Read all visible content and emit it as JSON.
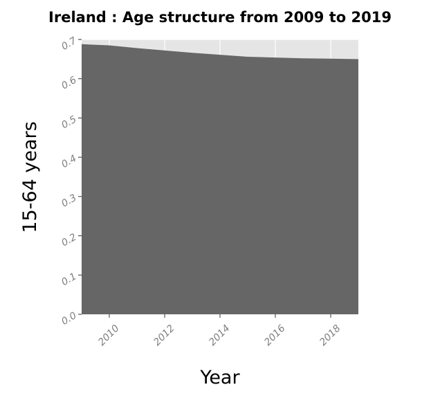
{
  "chart_data": {
    "type": "area",
    "title": "Ireland : Age structure from 2009 to 2019",
    "xlabel": "Year",
    "ylabel": "15-64 years",
    "x": [
      2009,
      2010,
      2011,
      2012,
      2013,
      2014,
      2015,
      2016,
      2017,
      2018,
      2019
    ],
    "values": [
      0.688,
      0.685,
      0.678,
      0.672,
      0.666,
      0.661,
      0.656,
      0.654,
      0.652,
      0.651,
      0.65
    ],
    "xlim": [
      2009,
      2019
    ],
    "ylim": [
      0,
      0.7
    ],
    "x_ticks": [
      2010,
      2012,
      2014,
      2016,
      2018
    ],
    "x_tick_labels": [
      "2010",
      "2012",
      "2014",
      "2016",
      "2018"
    ],
    "y_ticks": [
      0,
      0.1,
      0.2,
      0.3,
      0.4,
      0.5,
      0.6,
      0.7
    ],
    "y_tick_labels": [
      "0.0",
      "0.1",
      "0.2",
      "0.3",
      "0.4",
      "0.5",
      "0.6",
      "0.7"
    ],
    "grid": true,
    "legend": "none",
    "colors": {
      "area_fill": "#666666",
      "plot_background": "#e5e5e5",
      "grid": "#ffffff",
      "tick_label": "#7f7f7f",
      "text": "#000000"
    }
  }
}
